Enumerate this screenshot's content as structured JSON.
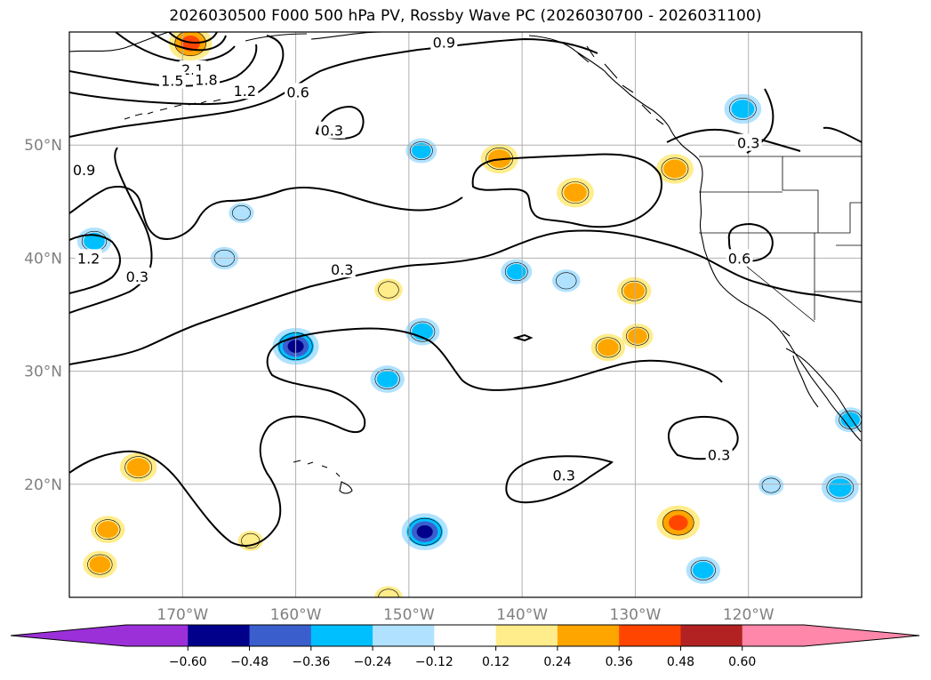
{
  "chart_data": {
    "type": "heatmap",
    "title": "2026030500 F000 500 hPa PV, Rossby Wave PC (2026030700 - 2026031100)",
    "projection": "lat-lon map, North Pacific",
    "xlim_deg_east": [
      -180,
      -110
    ],
    "ylim_deg_north": [
      10,
      60
    ],
    "grid": true,
    "lon_ticks": [
      {
        "value": -170,
        "label": "170°W"
      },
      {
        "value": -160,
        "label": "160°W"
      },
      {
        "value": -150,
        "label": "150°W"
      },
      {
        "value": -140,
        "label": "140°W"
      },
      {
        "value": -130,
        "label": "130°W"
      },
      {
        "value": -120,
        "label": "120°W"
      }
    ],
    "lat_ticks": [
      {
        "value": 50,
        "label": "50°N"
      },
      {
        "value": 40,
        "label": "40°N"
      },
      {
        "value": 30,
        "label": "30°N"
      },
      {
        "value": 20,
        "label": "20°N"
      }
    ],
    "contour_labels": [
      {
        "text": "0.9",
        "lon": -146.9,
        "lat": 59.1
      },
      {
        "text": "2.1",
        "lon": -169.1,
        "lat": 56.7
      },
      {
        "text": "1.5",
        "lon": -170.9,
        "lat": 55.7
      },
      {
        "text": "1.8",
        "lon": -167.9,
        "lat": 55.8
      },
      {
        "text": "1.2",
        "lon": -164.5,
        "lat": 54.8
      },
      {
        "text": "0.6",
        "lon": -159.8,
        "lat": 54.7
      },
      {
        "text": "0.3",
        "lon": -156.8,
        "lat": 51.3
      },
      {
        "text": "0.3",
        "lon": -120.0,
        "lat": 50.2
      },
      {
        "text": "0.9",
        "lon": -178.7,
        "lat": 47.8
      },
      {
        "text": "1.2",
        "lon": -178.3,
        "lat": 40.0
      },
      {
        "text": "0.3",
        "lon": -174.0,
        "lat": 38.4
      },
      {
        "text": "0.3",
        "lon": -155.9,
        "lat": 39.0
      },
      {
        "text": "0.6",
        "lon": -120.8,
        "lat": 40.0
      },
      {
        "text": "0.3",
        "lon": -122.6,
        "lat": 22.6
      },
      {
        "text": "0.3",
        "lon": -136.3,
        "lat": 20.8
      }
    ],
    "colorbar": {
      "orientation": "horizontal",
      "extend": "both",
      "levels": [
        -0.72,
        -0.6,
        -0.48,
        -0.36,
        -0.24,
        -0.12,
        0.12,
        0.24,
        0.36,
        0.48,
        0.6,
        0.72
      ],
      "tick_labels": [
        "−0.60",
        "−0.48",
        "−0.36",
        "−0.24",
        "−0.12",
        "0.12",
        "0.24",
        "0.36",
        "0.48",
        "0.60"
      ],
      "tick_values": [
        -0.6,
        -0.48,
        -0.36,
        -0.24,
        -0.12,
        0.12,
        0.24,
        0.36,
        0.48,
        0.6
      ],
      "under_color": "#9b30d9",
      "over_color": "#ff88aa",
      "colors": [
        "#9b30d9",
        "#00008b",
        "#3a5fcd",
        "#00bfff",
        "#b0e2ff",
        "#ffffff",
        "#ffec8b",
        "#ffa500",
        "#ff4500",
        "#b22222",
        "#ff88aa"
      ]
    },
    "shaded_anomalies": [
      {
        "lon": -169.3,
        "lat": 59.0,
        "value": 0.45
      },
      {
        "lon": -177.8,
        "lat": 41.5,
        "value": -0.3
      },
      {
        "lon": -166.3,
        "lat": 40.0,
        "value": -0.2
      },
      {
        "lon": -164.8,
        "lat": 44.0,
        "value": -0.15
      },
      {
        "lon": -160.0,
        "lat": 32.2,
        "value": -0.5
      },
      {
        "lon": -151.9,
        "lat": 29.3,
        "value": -0.3
      },
      {
        "lon": -151.8,
        "lat": 37.2,
        "value": 0.2
      },
      {
        "lon": -148.8,
        "lat": 33.5,
        "value": -0.3
      },
      {
        "lon": -148.9,
        "lat": 49.5,
        "value": -0.25
      },
      {
        "lon": -142.0,
        "lat": 48.8,
        "value": 0.35
      },
      {
        "lon": -140.5,
        "lat": 38.8,
        "value": -0.25
      },
      {
        "lon": -136.1,
        "lat": 38.0,
        "value": -0.2
      },
      {
        "lon": -135.3,
        "lat": 45.8,
        "value": 0.35
      },
      {
        "lon": -132.4,
        "lat": 32.1,
        "value": 0.3
      },
      {
        "lon": -130.1,
        "lat": 37.1,
        "value": 0.3
      },
      {
        "lon": -129.8,
        "lat": 33.1,
        "value": 0.25
      },
      {
        "lon": -126.5,
        "lat": 47.9,
        "value": 0.35
      },
      {
        "lon": -120.5,
        "lat": 53.2,
        "value": -0.35
      },
      {
        "lon": -126.2,
        "lat": 16.6,
        "value": 0.45
      },
      {
        "lon": -124.0,
        "lat": 12.4,
        "value": -0.3
      },
      {
        "lon": -148.6,
        "lat": 15.8,
        "value": -0.5
      },
      {
        "lon": -173.9,
        "lat": 21.5,
        "value": 0.35
      },
      {
        "lon": -176.6,
        "lat": 16.0,
        "value": 0.3
      },
      {
        "lon": -177.3,
        "lat": 12.9,
        "value": 0.3
      },
      {
        "lon": -111.9,
        "lat": 19.7,
        "value": -0.35
      },
      {
        "lon": -111.0,
        "lat": 25.7,
        "value": -0.25
      },
      {
        "lon": -118.0,
        "lat": 19.9,
        "value": -0.15
      },
      {
        "lon": -151.8,
        "lat": 10.0,
        "value": 0.2
      },
      {
        "lon": -164.0,
        "lat": 15.0,
        "value": 0.15
      }
    ]
  }
}
